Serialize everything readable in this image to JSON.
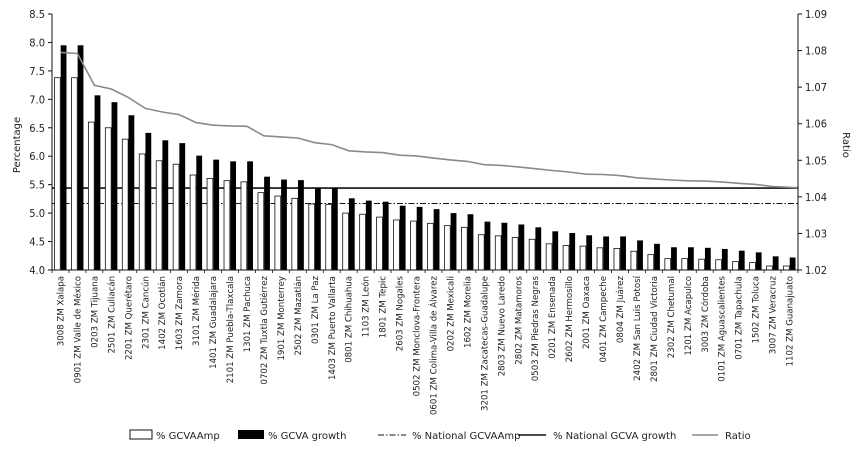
{
  "chart_data": {
    "type": "bar",
    "ylabel": "Percentage",
    "y2label": "Ratio",
    "ylim": [
      4.0,
      8.5
    ],
    "y2lim": [
      1.02,
      1.09
    ],
    "yticks": [
      "4.0",
      "4.5",
      "5.0",
      "5.5",
      "6.0",
      "6.5",
      "7.0",
      "7.5",
      "8.0",
      "8.5"
    ],
    "y2ticks": [
      "1.02",
      "1.03",
      "1.04",
      "1.05",
      "1.06",
      "1.07",
      "1.08",
      "1.09"
    ],
    "categories": [
      "3008 ZM Xalapa",
      "0901 ZM Valle de México",
      "0203 ZM Tijuana",
      "2501 ZM Culiacán",
      "2201 ZM Querétaro",
      "2301 ZM Cancún",
      "1402 ZM Ocotlán",
      "1603 ZM Zamora",
      "3101 ZM Mérida",
      "1401 ZM Guadalajara",
      "2101 ZM Puebla-Tlaxcala",
      "1301 ZM Pachuca",
      "0702 ZM Tuxtla Gutiérrez",
      "1901 ZM Monterrey",
      "2502 ZM Mazatlán",
      "0301 ZM La Paz",
      "1403 ZM Puerto Vallarta",
      "0801 ZM Chihuahua",
      "1103 ZM León",
      "1801 ZM Tepic",
      "2603 ZM Nogales",
      "0502 ZM Monclova-Frontera",
      "0601 ZM Colima-Villa de Álvarez",
      "0202 ZM Mexicali",
      "1602 ZM Morelia",
      "3201 ZM Zacatecas-Guadalupe",
      "2803 ZM Nuevo Laredo",
      "2802 ZM Matamoros",
      "0503 ZM Piedras Negras",
      "0201 ZM Ensenada",
      "2602 ZM Hermosillo",
      "2001 ZM Oaxaca",
      "0401 ZM Campeche",
      "0804 ZM Juárez",
      "2402 ZM San Luis Potosí",
      "2801 ZM Ciudad Victoria",
      "2302 ZM Chetumal",
      "1201 ZM Acapulco",
      "3003 ZM Córdoba",
      "0101 ZM Aguascalientes",
      "0701 ZM Tapachula",
      "1502 ZM Toluca",
      "3007 ZM Veracruz",
      "1102 ZM Guanajuato"
    ],
    "series": [
      {
        "name": "%  GCVAAmp",
        "values": [
          7.38,
          7.38,
          6.6,
          6.5,
          6.3,
          6.04,
          5.92,
          5.86,
          5.67,
          5.61,
          5.57,
          5.55,
          5.36,
          5.3,
          5.26,
          5.16,
          5.15,
          5.0,
          4.98,
          4.93,
          4.88,
          4.86,
          4.82,
          4.78,
          4.75,
          4.62,
          4.6,
          4.57,
          4.54,
          4.46,
          4.43,
          4.42,
          4.39,
          4.38,
          4.33,
          4.27,
          4.2,
          4.2,
          4.19,
          4.18,
          4.15,
          4.13,
          4.07,
          4.07
        ]
      },
      {
        "name": "% GCVA growth",
        "values": [
          7.95,
          7.95,
          7.07,
          6.95,
          6.72,
          6.41,
          6.28,
          6.23,
          6.01,
          5.94,
          5.91,
          5.91,
          5.64,
          5.59,
          5.58,
          5.45,
          5.45,
          5.26,
          5.22,
          5.2,
          5.13,
          5.11,
          5.07,
          5.0,
          4.98,
          4.85,
          4.83,
          4.8,
          4.75,
          4.68,
          4.65,
          4.61,
          4.59,
          4.59,
          4.52,
          4.46,
          4.4,
          4.4,
          4.39,
          4.37,
          4.34,
          4.31,
          4.24,
          4.22
        ]
      },
      {
        "name": "Ratio",
        "axis": "y2",
        "values": [
          1.0795,
          1.0792,
          1.0705,
          1.0695,
          1.0672,
          1.0642,
          1.0632,
          1.0625,
          1.0603,
          1.0596,
          1.0594,
          1.0593,
          1.0567,
          1.0564,
          1.0561,
          1.0548,
          1.0543,
          1.0526,
          1.0523,
          1.0521,
          1.0514,
          1.0512,
          1.0506,
          1.0501,
          1.0497,
          1.0488,
          1.0486,
          1.0482,
          1.0477,
          1.0472,
          1.0468,
          1.0462,
          1.0461,
          1.0458,
          1.0452,
          1.0449,
          1.0446,
          1.0444,
          1.0443,
          1.0441,
          1.0437,
          1.0434,
          1.0428,
          1.0425
        ]
      }
    ],
    "reference_lines": [
      {
        "name": "%  National GCVAAmp",
        "value": 5.17,
        "style": "dash-dot"
      },
      {
        "name": "% National GCVA growth",
        "value": 5.44,
        "style": "solid"
      }
    ],
    "legend_position": "bottom",
    "legend": [
      {
        "label": "%  GCVAAmp",
        "kind": "white-box"
      },
      {
        "label": "% GCVA growth",
        "kind": "black-box"
      },
      {
        "label": "%  National GCVAAmp",
        "kind": "dash-dot-line"
      },
      {
        "label": "% National GCVA growth",
        "kind": "solid-line"
      },
      {
        "label": "Ratio",
        "kind": "gray-line"
      }
    ]
  }
}
